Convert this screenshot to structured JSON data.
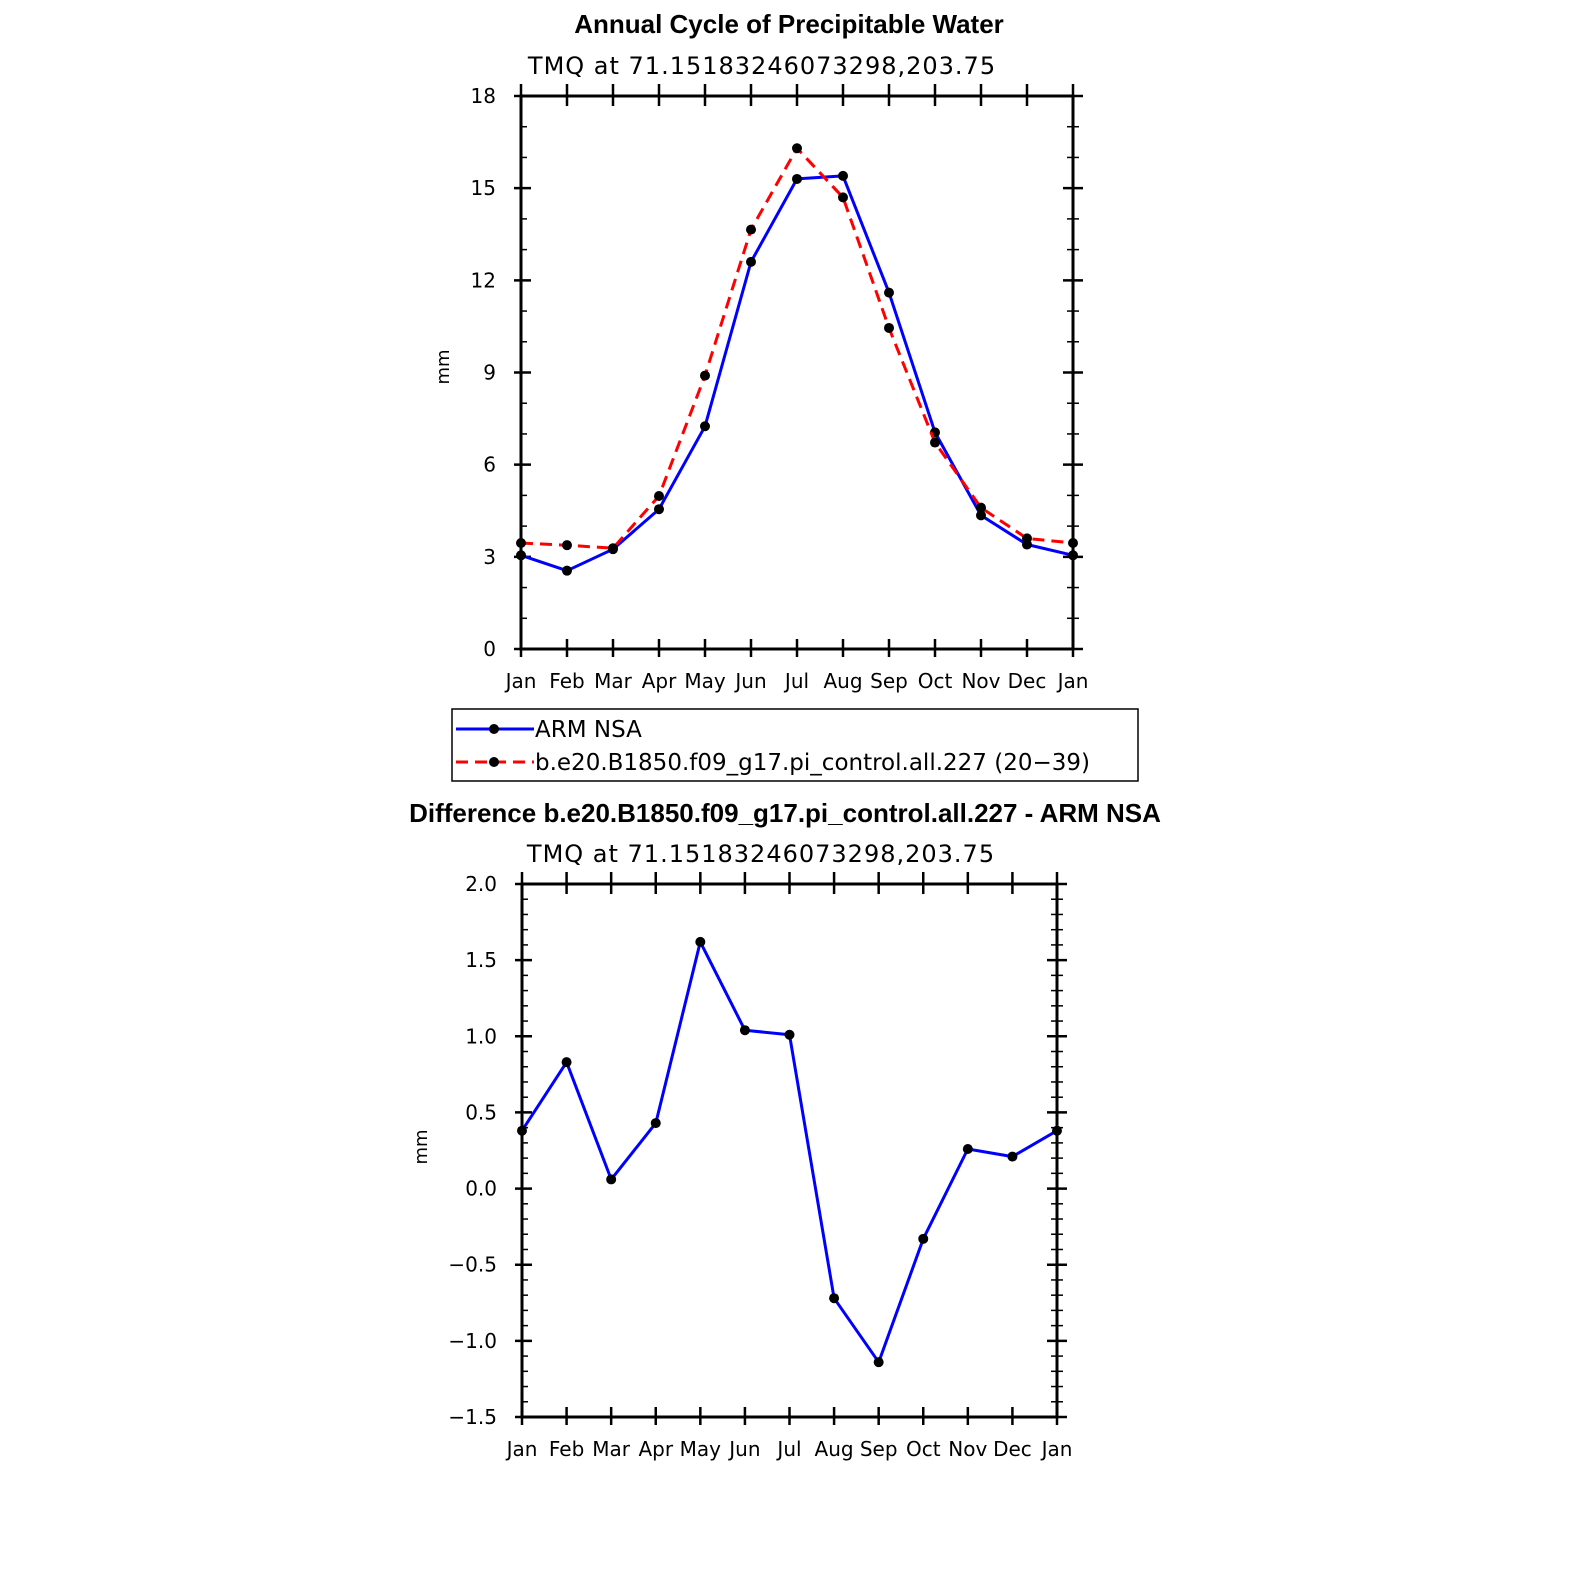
{
  "chart_data": [
    {
      "id": "top",
      "type": "line",
      "title": "Annual Cycle of Precipitable Water",
      "subtitle": "TMQ at 71.15183246073298,203.75",
      "ylabel": "mm",
      "xlabel": "",
      "categories": [
        "Jan",
        "Feb",
        "Mar",
        "Apr",
        "May",
        "Jun",
        "Jul",
        "Aug",
        "Sep",
        "Oct",
        "Nov",
        "Dec",
        "Jan"
      ],
      "ylim": [
        0,
        18
      ],
      "yticks": [
        0,
        3,
        6,
        9,
        12,
        15,
        18
      ],
      "ytick_labels": [
        "0",
        "3",
        "6",
        "9",
        "12",
        "15",
        "18"
      ],
      "yminor_step": 1,
      "series": [
        {
          "name": "ARM NSA",
          "color": "#0000ff",
          "dash": "solid",
          "values": [
            3.05,
            2.55,
            3.25,
            4.55,
            7.25,
            12.6,
            15.3,
            15.4,
            11.6,
            7.05,
            4.35,
            3.4,
            3.05
          ]
        },
        {
          "name": "b.e20.B1850.f09_g17.pi_control.all.227 (20−39)",
          "color": "#ff0000",
          "dash": "dashed",
          "values": [
            3.45,
            3.38,
            3.28,
            4.98,
            8.9,
            13.65,
            16.3,
            14.7,
            10.45,
            6.72,
            4.6,
            3.6,
            3.45
          ]
        }
      ],
      "legend": {
        "placement": "below",
        "entries": [
          "ARM NSA",
          "b.e20.B1850.f09_g17.pi_control.all.227 (20−39)"
        ]
      }
    },
    {
      "id": "bottom",
      "type": "line",
      "title": "Difference b.e20.B1850.f09_g17.pi_control.all.227 - ARM NSA",
      "subtitle": "TMQ at 71.15183246073298,203.75",
      "ylabel": "mm",
      "xlabel": "",
      "categories": [
        "Jan",
        "Feb",
        "Mar",
        "Apr",
        "May",
        "Jun",
        "Jul",
        "Aug",
        "Sep",
        "Oct",
        "Nov",
        "Dec",
        "Jan"
      ],
      "ylim": [
        -1.5,
        2.0
      ],
      "yticks": [
        -1.5,
        -1.0,
        -0.5,
        0.0,
        0.5,
        1.0,
        1.5,
        2.0
      ],
      "ytick_labels": [
        "−1.5",
        "−1.0",
        "−0.5",
        "0.0",
        "0.5",
        "1.0",
        "1.5",
        "2.0"
      ],
      "yminor_step": 0.1,
      "series": [
        {
          "name": "Difference",
          "color": "#0000ff",
          "dash": "solid",
          "values": [
            0.38,
            0.83,
            0.06,
            0.43,
            1.62,
            1.04,
            1.01,
            -0.72,
            -1.14,
            -0.33,
            0.26,
            0.21,
            0.38
          ]
        }
      ]
    }
  ]
}
